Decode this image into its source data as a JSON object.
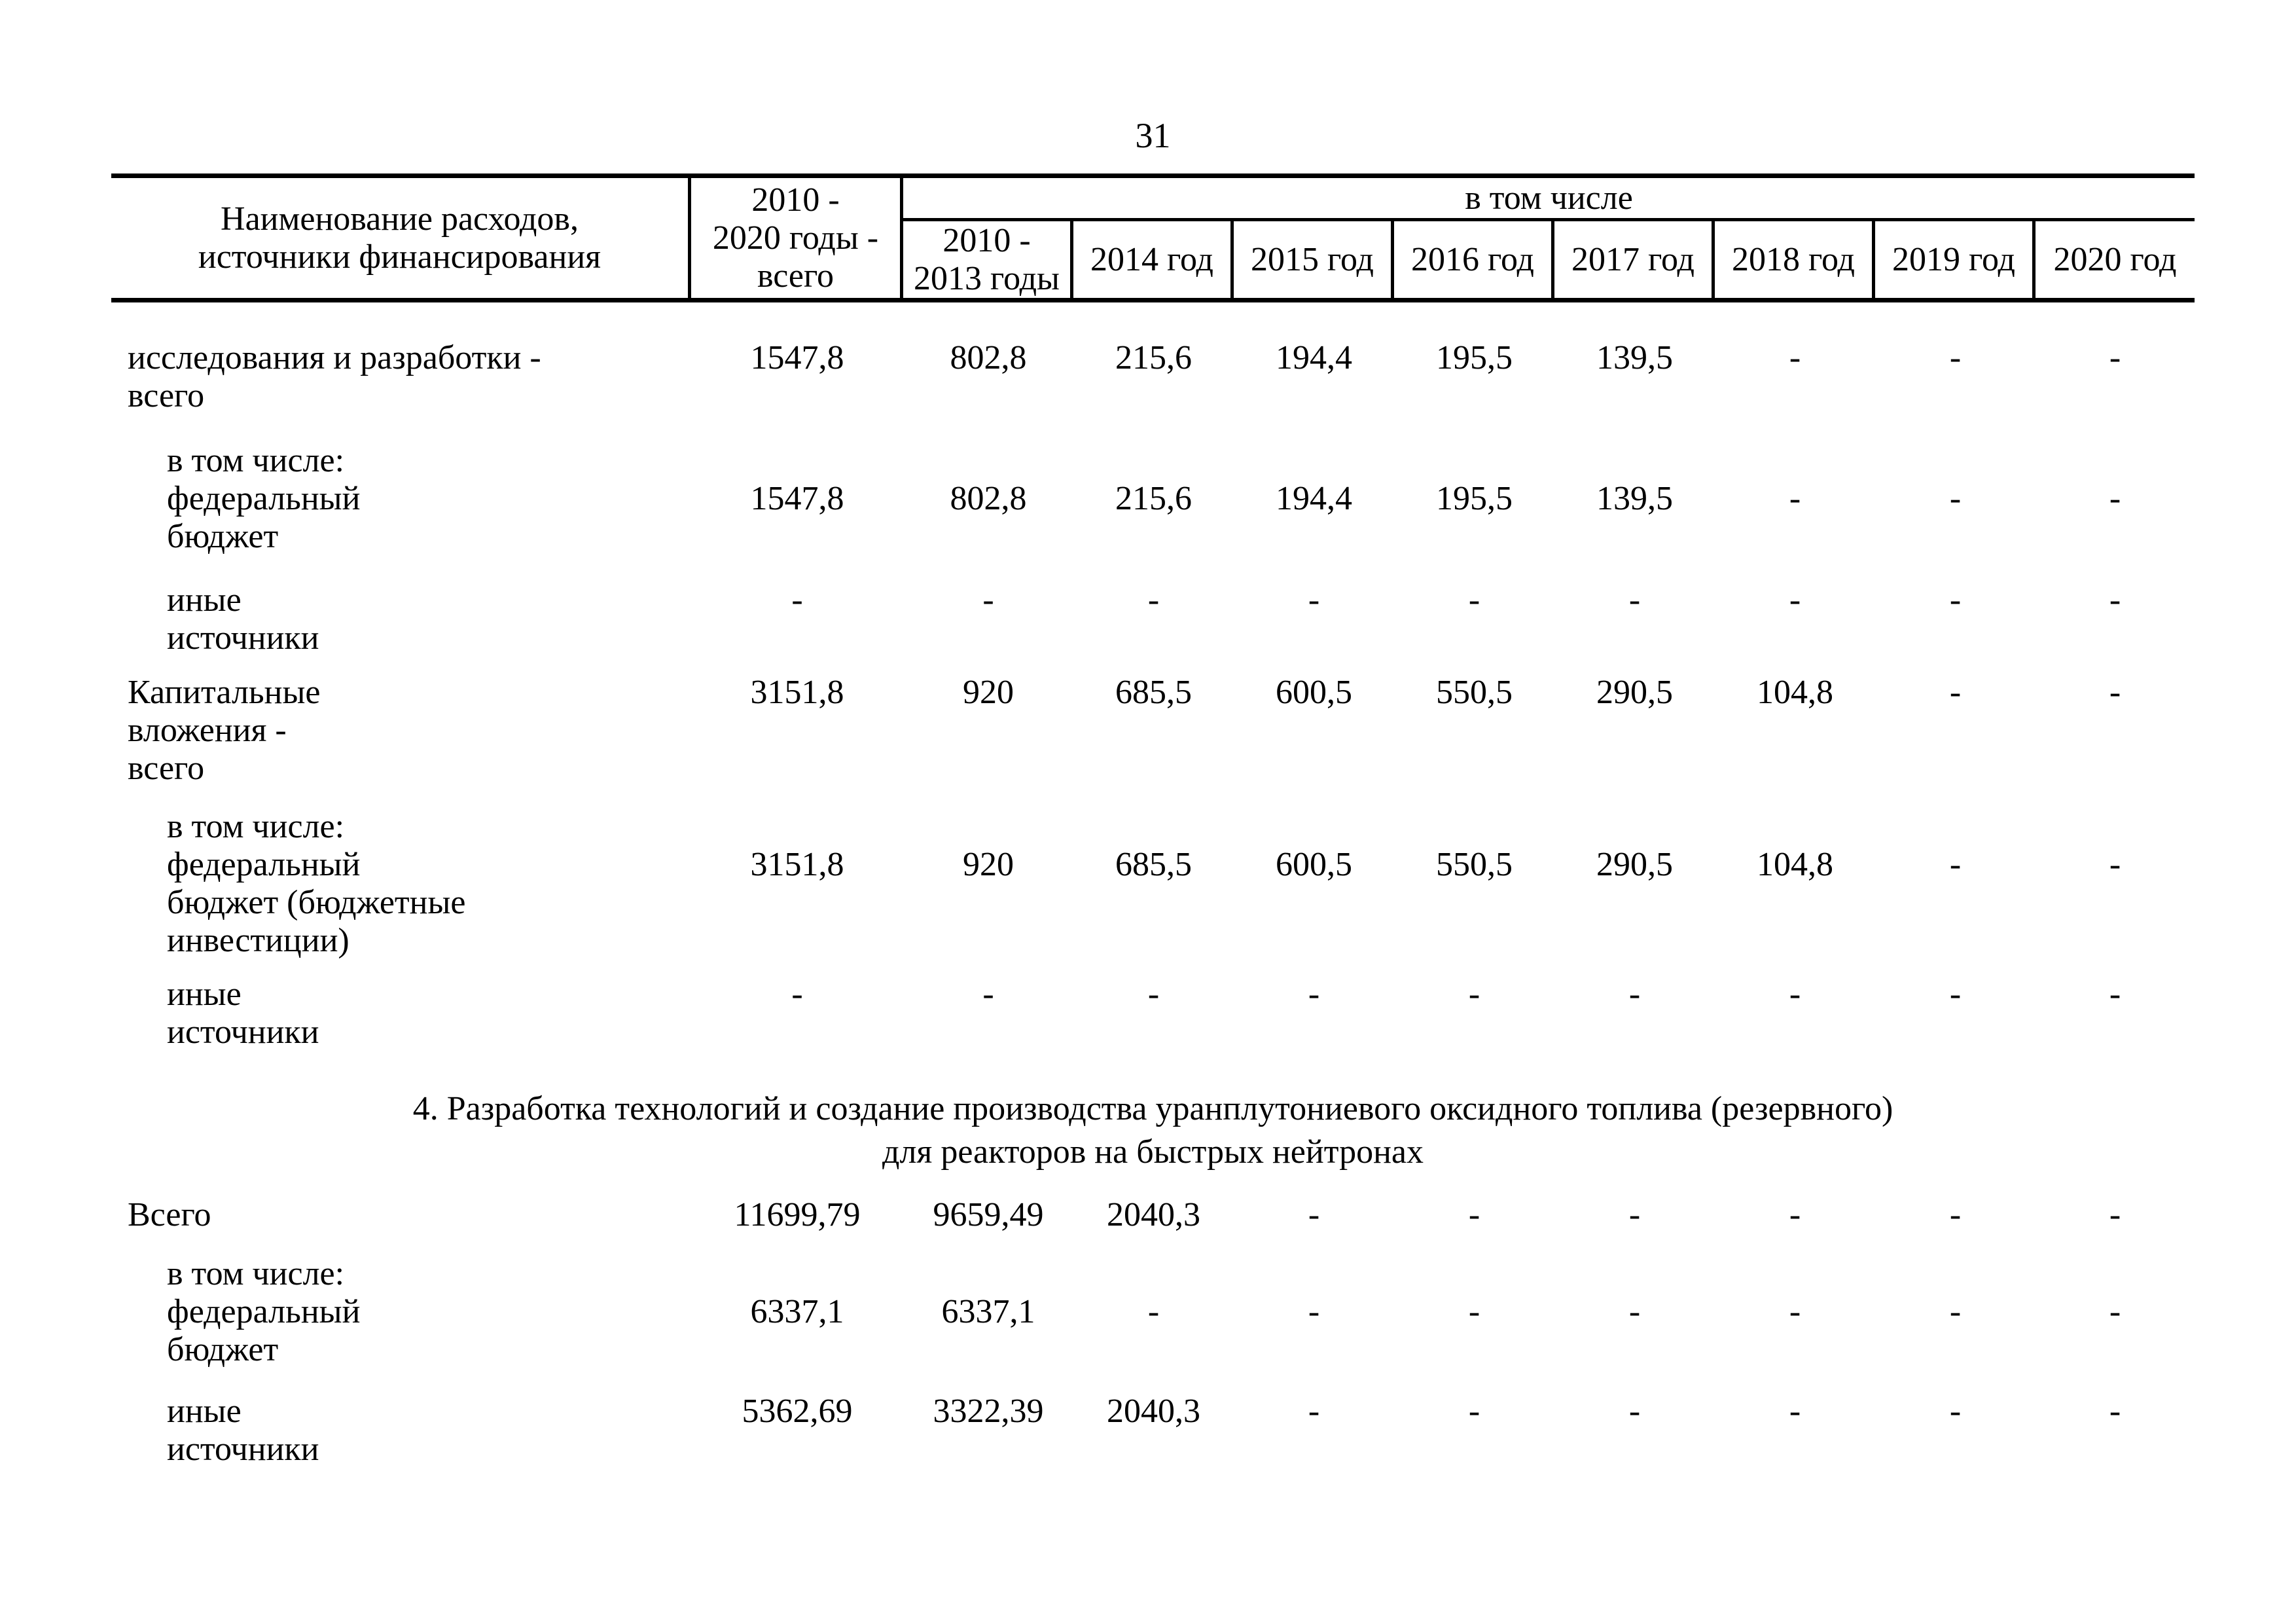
{
  "page_number": "31",
  "table": {
    "header": {
      "name_col": [
        "Наименование расходов,",
        "источники финансирования"
      ],
      "total_col": [
        "2010 -",
        "2020 годы -",
        "всего"
      ],
      "group_label": "в том числе",
      "year_cols": [
        [
          "2010 -",
          "2013 годы"
        ],
        [
          "2014 год"
        ],
        [
          "2015 год"
        ],
        [
          "2016 год"
        ],
        [
          "2017 год"
        ],
        [
          "2018 год"
        ],
        [
          "2019 год"
        ],
        [
          "2020 год"
        ]
      ]
    },
    "body": [
      {
        "type": "row",
        "indent": false,
        "value_line": 0,
        "name_lines": [
          "исследования и разработки -",
          "всего"
        ],
        "values": [
          "1547,8",
          "802,8",
          "215,6",
          "194,4",
          "195,5",
          "139,5",
          "-",
          "-",
          "-"
        ]
      },
      {
        "type": "row",
        "indent": true,
        "value_line": 1,
        "name_lines": [
          "в том числе:",
          "федеральный",
          "бюджет"
        ],
        "values": [
          "1547,8",
          "802,8",
          "215,6",
          "194,4",
          "195,5",
          "139,5",
          "-",
          "-",
          "-"
        ]
      },
      {
        "type": "row",
        "indent": true,
        "value_line": 0,
        "name_lines": [
          "иные",
          "источники"
        ],
        "values": [
          "-",
          "-",
          "-",
          "-",
          "-",
          "-",
          "-",
          "-",
          "-"
        ]
      },
      {
        "type": "row",
        "indent": false,
        "value_line": 0,
        "name_lines": [
          "Капитальные",
          "вложения -",
          "всего"
        ],
        "values": [
          "3151,8",
          "920",
          "685,5",
          "600,5",
          "550,5",
          "290,5",
          "104,8",
          "-",
          "-"
        ]
      },
      {
        "type": "row",
        "indent": true,
        "value_line": 1,
        "name_lines": [
          "в том числе:",
          "федеральный",
          "бюджет (бюджетные",
          "инвестиции)"
        ],
        "values": [
          "3151,8",
          "920",
          "685,5",
          "600,5",
          "550,5",
          "290,5",
          "104,8",
          "-",
          "-"
        ]
      },
      {
        "type": "row",
        "indent": true,
        "value_line": 0,
        "name_lines": [
          "иные",
          "источники"
        ],
        "values": [
          "-",
          "-",
          "-",
          "-",
          "-",
          "-",
          "-",
          "-",
          "-"
        ]
      },
      {
        "type": "section",
        "lines": [
          "4. Разработка технологий и создание производства уранплутониевого оксидного топлива (резервного)",
          "для реакторов на быстрых нейтронах"
        ]
      },
      {
        "type": "row",
        "indent": false,
        "value_line": 0,
        "name_lines": [
          "Всего"
        ],
        "values": [
          "11699,79",
          "9659,49",
          "2040,3",
          "-",
          "-",
          "-",
          "-",
          "-",
          "-"
        ]
      },
      {
        "type": "row",
        "indent": true,
        "value_line": 1,
        "name_lines": [
          "в том числе:",
          "федеральный",
          "бюджет"
        ],
        "values": [
          "6337,1",
          "6337,1",
          "-",
          "-",
          "-",
          "-",
          "-",
          "-",
          "-"
        ]
      },
      {
        "type": "row",
        "indent": true,
        "value_line": 0,
        "name_lines": [
          "иные",
          "источники"
        ],
        "values": [
          "5362,69",
          "3322,39",
          "2040,3",
          "-",
          "-",
          "-",
          "-",
          "-",
          "-"
        ]
      }
    ]
  }
}
